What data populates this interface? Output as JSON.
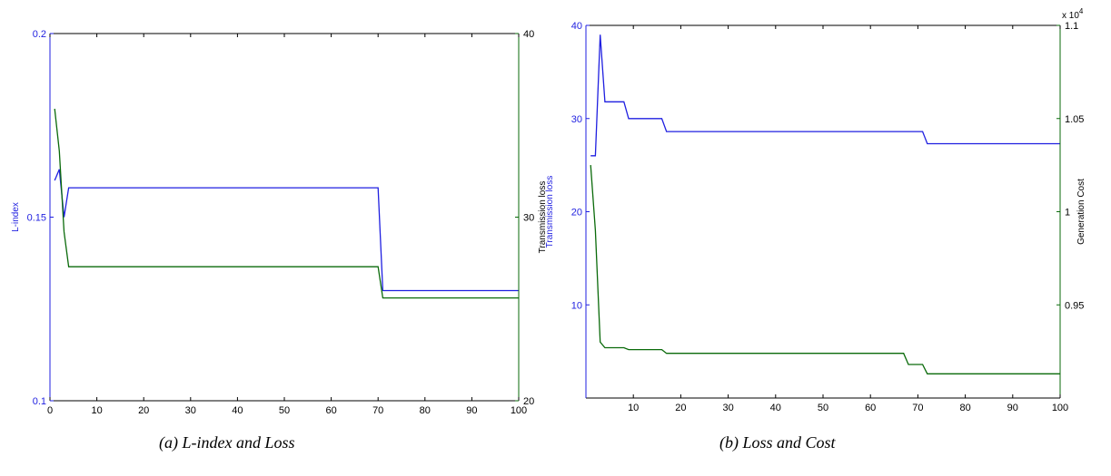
{
  "colors": {
    "blue": "#1f1fe0",
    "green": "#0a6a0a",
    "axis": "#000000",
    "background": "#ffffff"
  },
  "captions": [
    "(a) L-index and Loss",
    "(b) Loss and Cost"
  ],
  "chart_data": [
    {
      "type": "line",
      "title": "",
      "caption": "(a) L-index and Loss",
      "xlabel": "",
      "ylabel": "L-index",
      "y2label": "Transmission loss",
      "xlim": [
        0,
        100
      ],
      "ylim": [
        0.1,
        0.2
      ],
      "y2lim": [
        20,
        40
      ],
      "x_ticks": [
        0,
        10,
        20,
        30,
        40,
        50,
        60,
        70,
        80,
        90,
        100
      ],
      "y_ticks": [
        0.1,
        0.15,
        0.2
      ],
      "y_tick_labels": [
        "0.1",
        "0.15",
        "0.2"
      ],
      "y2_ticks": [
        20,
        30,
        40
      ],
      "y2_tick_labels": [
        "20",
        "30",
        "40"
      ],
      "grid": false,
      "series": [
        {
          "axis": "left",
          "color": "#1f1fe0",
          "x": [
            1,
            2,
            3,
            4,
            70,
            71,
            100
          ],
          "y": [
            0.16,
            0.163,
            0.15,
            0.158,
            0.158,
            0.13,
            0.13
          ]
        },
        {
          "axis": "right",
          "color": "#0a6a0a",
          "x": [
            1,
            2,
            3,
            4,
            70,
            71,
            100
          ],
          "y": [
            35.9,
            33.6,
            29.2,
            27.3,
            27.3,
            25.6,
            25.6
          ]
        }
      ]
    },
    {
      "type": "line",
      "title": "",
      "caption": "(b) Loss and Cost",
      "xlabel": "",
      "ylabel": "Transmission loss",
      "y2label": "Generation Cost",
      "y2_exponent": "x 10^4",
      "xlim": [
        0,
        100
      ],
      "ylim": [
        0,
        40
      ],
      "y2lim": [
        0.9,
        1.1
      ],
      "x_ticks": [
        10,
        20,
        30,
        40,
        50,
        60,
        70,
        80,
        90,
        100
      ],
      "y_ticks": [
        10,
        20,
        30,
        40
      ],
      "y_tick_labels": [
        "10",
        "20",
        "30",
        "40"
      ],
      "y2_ticks": [
        0.95,
        1.0,
        1.05,
        1.1
      ],
      "y2_tick_labels": [
        "0.95",
        "1",
        "1.05",
        "1.1"
      ],
      "grid": false,
      "series": [
        {
          "axis": "left",
          "color": "#1f1fe0",
          "x": [
            1,
            2,
            3,
            4,
            8,
            9,
            16,
            17,
            71,
            72,
            100
          ],
          "y": [
            26,
            26,
            39,
            31.8,
            31.8,
            30,
            30,
            28.6,
            28.6,
            27.3,
            27.3
          ]
        },
        {
          "axis": "right",
          "color": "#0a6a0a",
          "x": [
            1,
            2,
            3,
            4,
            8,
            9,
            16,
            17,
            67,
            68,
            71,
            72,
            100
          ],
          "y": [
            1.025,
            0.99,
            0.93,
            0.927,
            0.927,
            0.926,
            0.926,
            0.924,
            0.924,
            0.918,
            0.918,
            0.913,
            0.913
          ]
        }
      ]
    }
  ]
}
